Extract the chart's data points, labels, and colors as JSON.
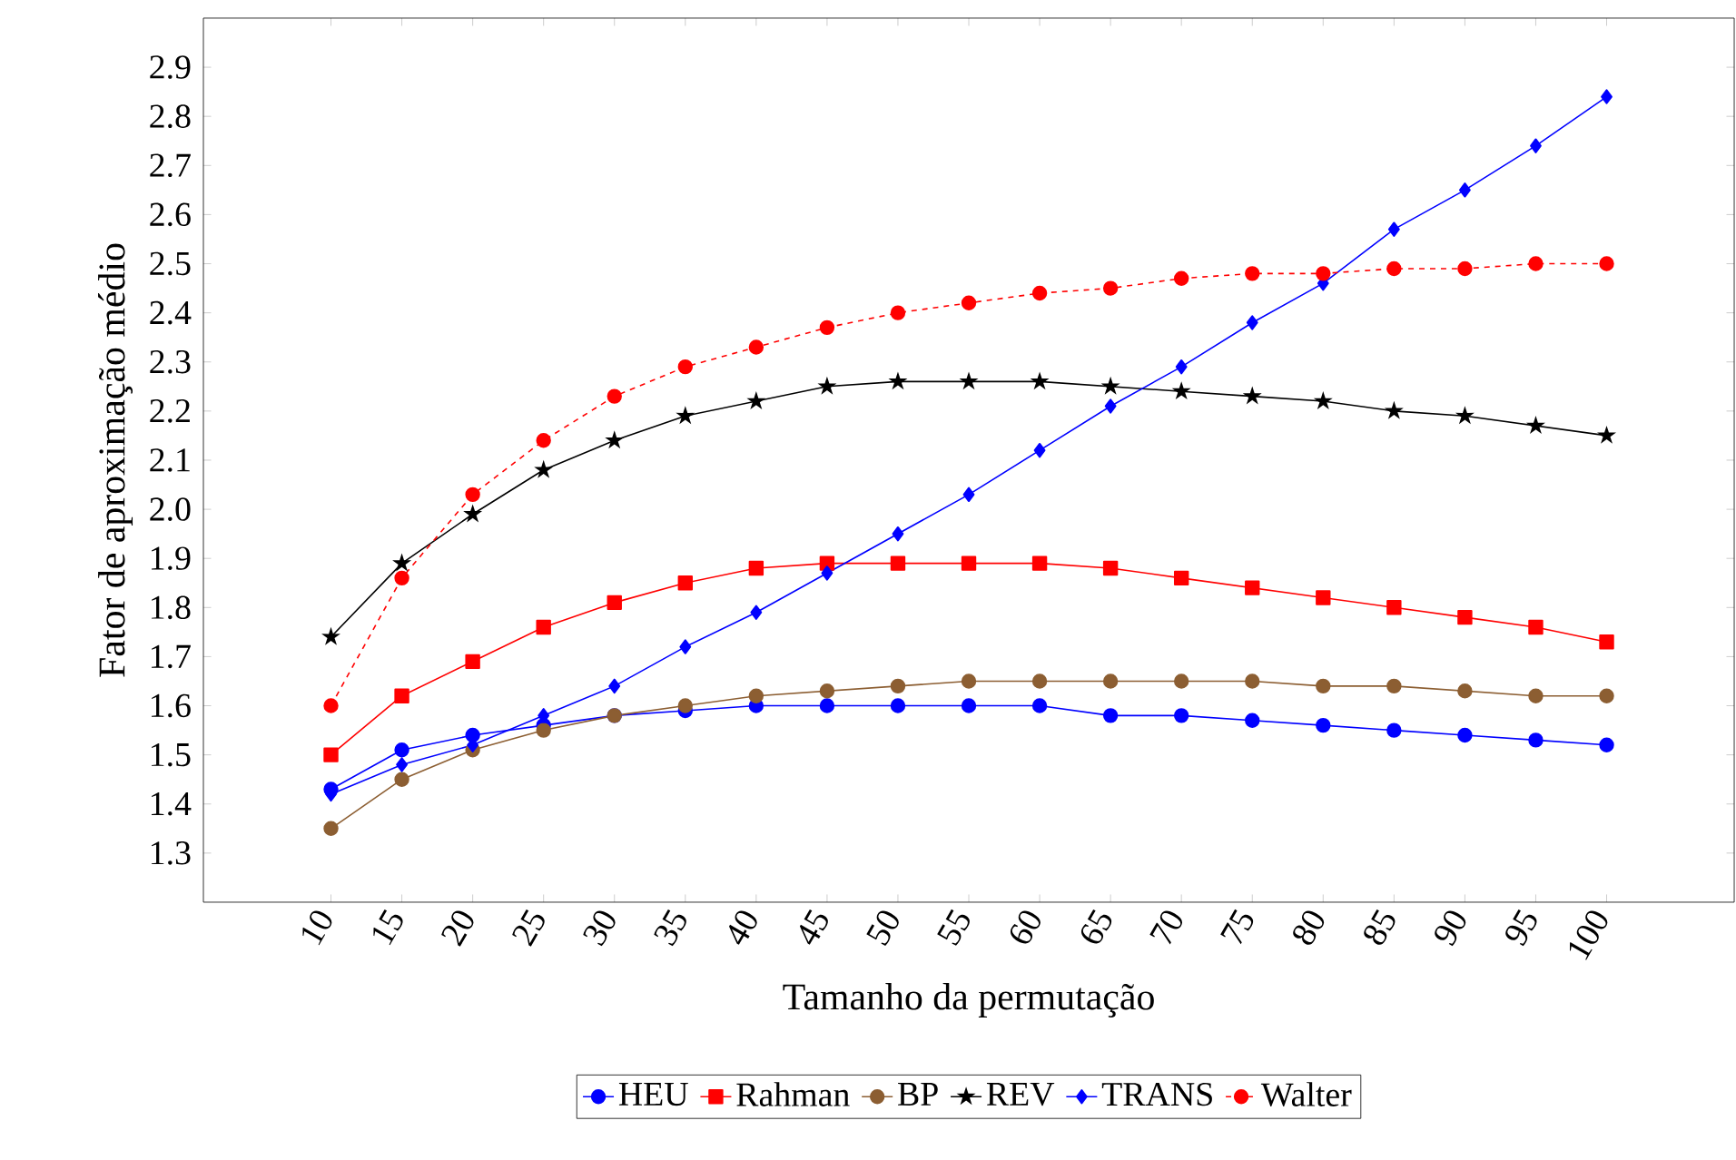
{
  "chart_data": {
    "type": "line",
    "xlabel": "Tamanho da permutação",
    "ylabel": "Fator de aproximação médio",
    "x": [
      10,
      15,
      20,
      25,
      30,
      35,
      40,
      45,
      50,
      55,
      60,
      65,
      70,
      75,
      80,
      85,
      90,
      95,
      100
    ],
    "xlim": [
      1,
      109
    ],
    "xticks": [
      10,
      15,
      20,
      25,
      30,
      35,
      40,
      45,
      50,
      55,
      60,
      65,
      70,
      75,
      80,
      85,
      90,
      95,
      100
    ],
    "ylim": [
      1.2,
      3.0
    ],
    "yticks": [
      1.3,
      1.4,
      1.5,
      1.6,
      1.7,
      1.8,
      1.9,
      {
        "value": 2.0,
        "label": "2.0"
      },
      2.1,
      2.2,
      2.3,
      2.4,
      2.5,
      2.6,
      2.7,
      2.8,
      2.9
    ],
    "legend": "bottom",
    "grid": false,
    "series": [
      {
        "name": "HEU",
        "color": "#0000ff",
        "marker": "circle",
        "line_style": "solid",
        "values": [
          1.43,
          1.51,
          1.54,
          1.56,
          1.58,
          1.59,
          1.6,
          1.6,
          1.6,
          1.6,
          1.6,
          1.58,
          1.58,
          1.57,
          1.56,
          1.55,
          1.54,
          1.53,
          1.52
        ]
      },
      {
        "name": "Rahman",
        "color": "#ff0000",
        "marker": "square",
        "line_style": "solid",
        "values": [
          1.5,
          1.62,
          1.69,
          1.76,
          1.81,
          1.85,
          1.88,
          1.89,
          1.89,
          1.89,
          1.89,
          1.88,
          1.86,
          1.84,
          1.82,
          1.8,
          1.78,
          1.76,
          1.73
        ]
      },
      {
        "name": "BP",
        "color": "#8c5e32",
        "marker": "circle",
        "line_style": "solid",
        "values": [
          1.35,
          1.45,
          1.51,
          1.55,
          1.58,
          1.6,
          1.62,
          1.63,
          1.64,
          1.65,
          1.65,
          1.65,
          1.65,
          1.65,
          1.64,
          1.64,
          1.63,
          1.62,
          1.62
        ]
      },
      {
        "name": "REV",
        "color": "#000000",
        "marker": "star",
        "line_style": "solid",
        "values": [
          1.74,
          1.89,
          1.99,
          2.08,
          2.14,
          2.19,
          2.22,
          2.25,
          2.26,
          2.26,
          2.26,
          2.25,
          2.24,
          2.23,
          2.22,
          2.2,
          2.19,
          2.17,
          2.15
        ]
      },
      {
        "name": "TRANS",
        "color": "#0000ff",
        "marker": "diamond",
        "line_style": "solid",
        "values": [
          1.42,
          1.48,
          1.52,
          1.58,
          1.64,
          1.72,
          1.79,
          1.87,
          1.95,
          2.03,
          2.12,
          2.21,
          2.29,
          2.38,
          2.46,
          2.57,
          2.65,
          2.74,
          2.84
        ]
      },
      {
        "name": "Walter",
        "color": "#ff0000",
        "marker": "circle",
        "line_style": "dashed",
        "values": [
          1.6,
          1.86,
          2.03,
          2.14,
          2.23,
          2.29,
          2.33,
          2.37,
          2.4,
          2.42,
          2.44,
          2.45,
          2.47,
          2.48,
          2.48,
          2.49,
          2.49,
          2.5,
          2.5
        ]
      }
    ]
  }
}
